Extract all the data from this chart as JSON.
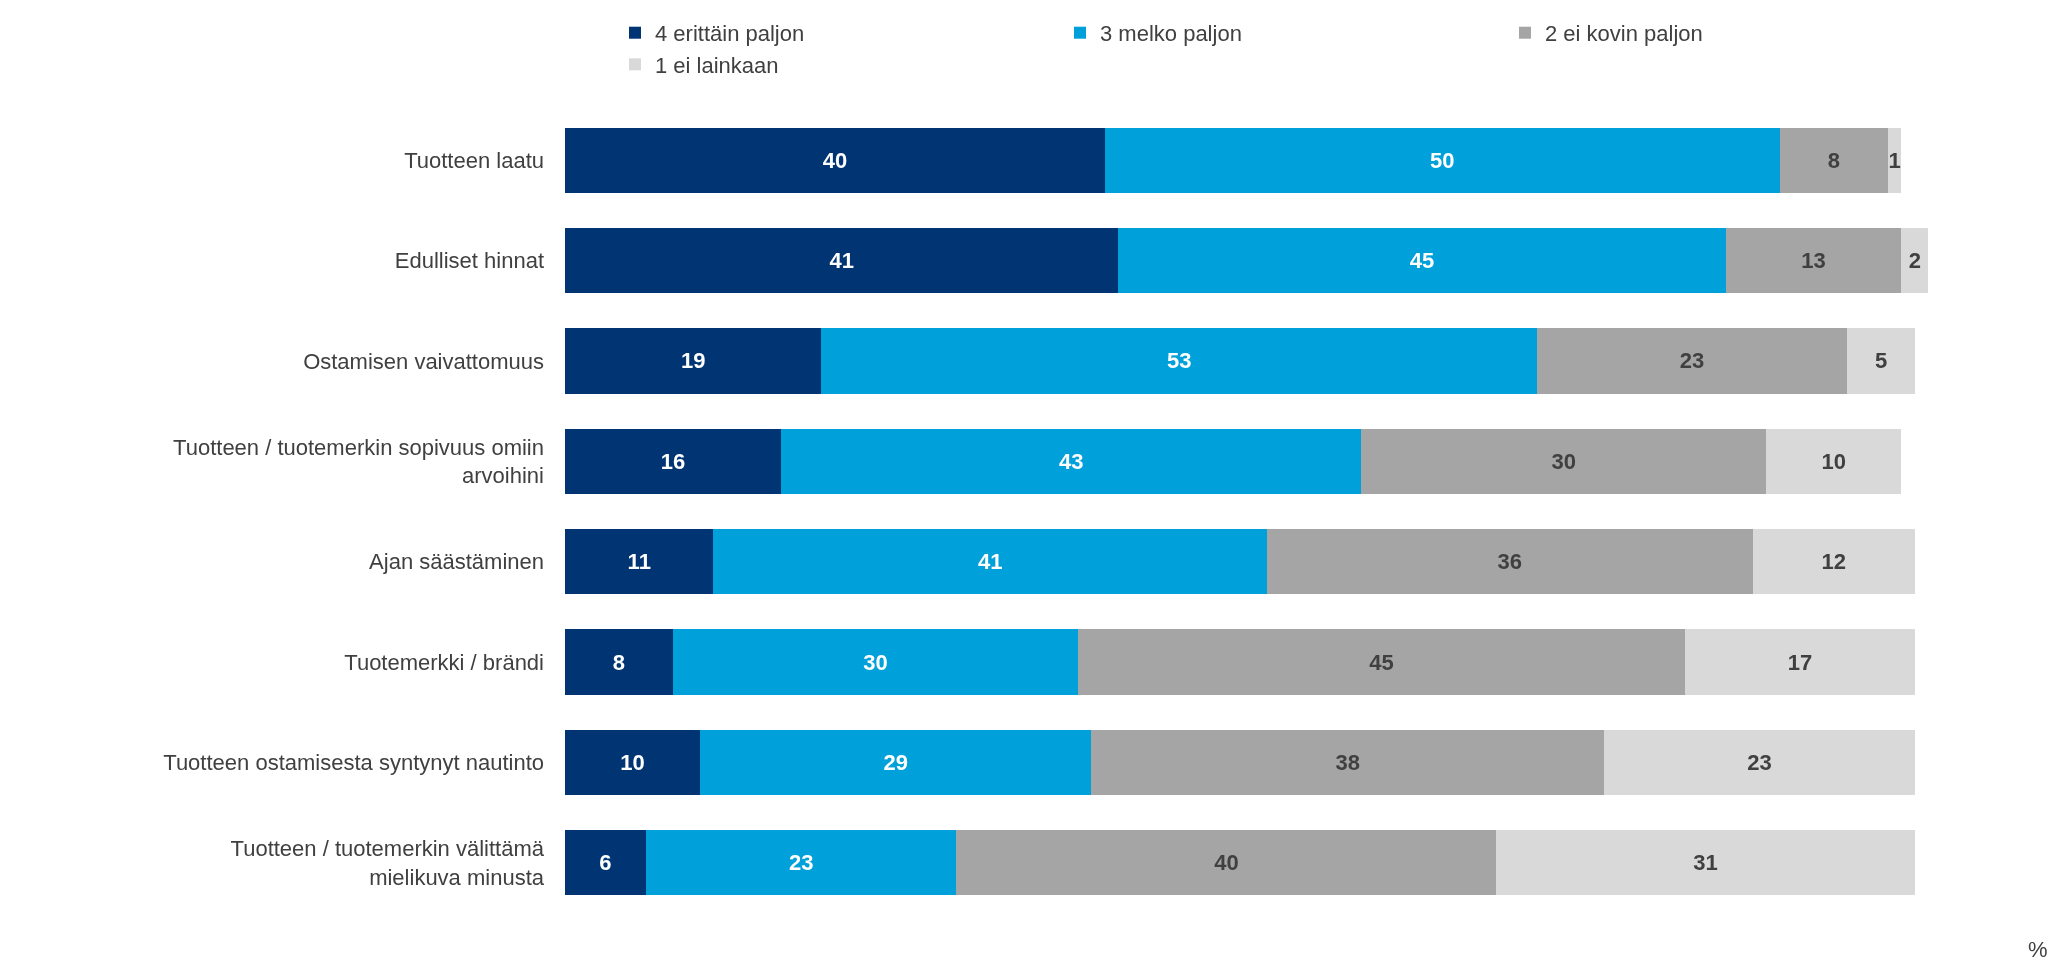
{
  "chart_data": {
    "type": "bar",
    "orientation": "horizontal",
    "stacked": true,
    "data_labels": true,
    "legend": "top",
    "categories": [
      "Tuotteen laatu",
      "Edulliset hinnat",
      "Ostamisen vaivattomuus",
      "Tuotteen / tuotemerkin sopivuus omiin\narvoihini",
      "Ajan säästäminen",
      "Tuotemerkki / brändi",
      "Tuotteen ostamisesta syntynyt nautinto",
      "Tuotteen / tuotemerkin välittämä\nmielikuva minusta"
    ],
    "series": [
      {
        "name": "4 erittäin paljon",
        "color": "#003473",
        "values": [
          40,
          41,
          19,
          16,
          11,
          8,
          10,
          6
        ]
      },
      {
        "name": "3 melko paljon",
        "color": "#00a0da",
        "values": [
          50,
          45,
          53,
          43,
          41,
          30,
          29,
          23
        ]
      },
      {
        "name": "2 ei kovin paljon",
        "color": "#a5a5a5",
        "values": [
          8,
          13,
          23,
          30,
          36,
          45,
          38,
          40
        ]
      },
      {
        "name": "1 ei lainkaan",
        "color": "#d9d9d9",
        "values": [
          1,
          2,
          5,
          10,
          12,
          17,
          23,
          31
        ]
      }
    ],
    "annotations": [
      "%"
    ]
  }
}
